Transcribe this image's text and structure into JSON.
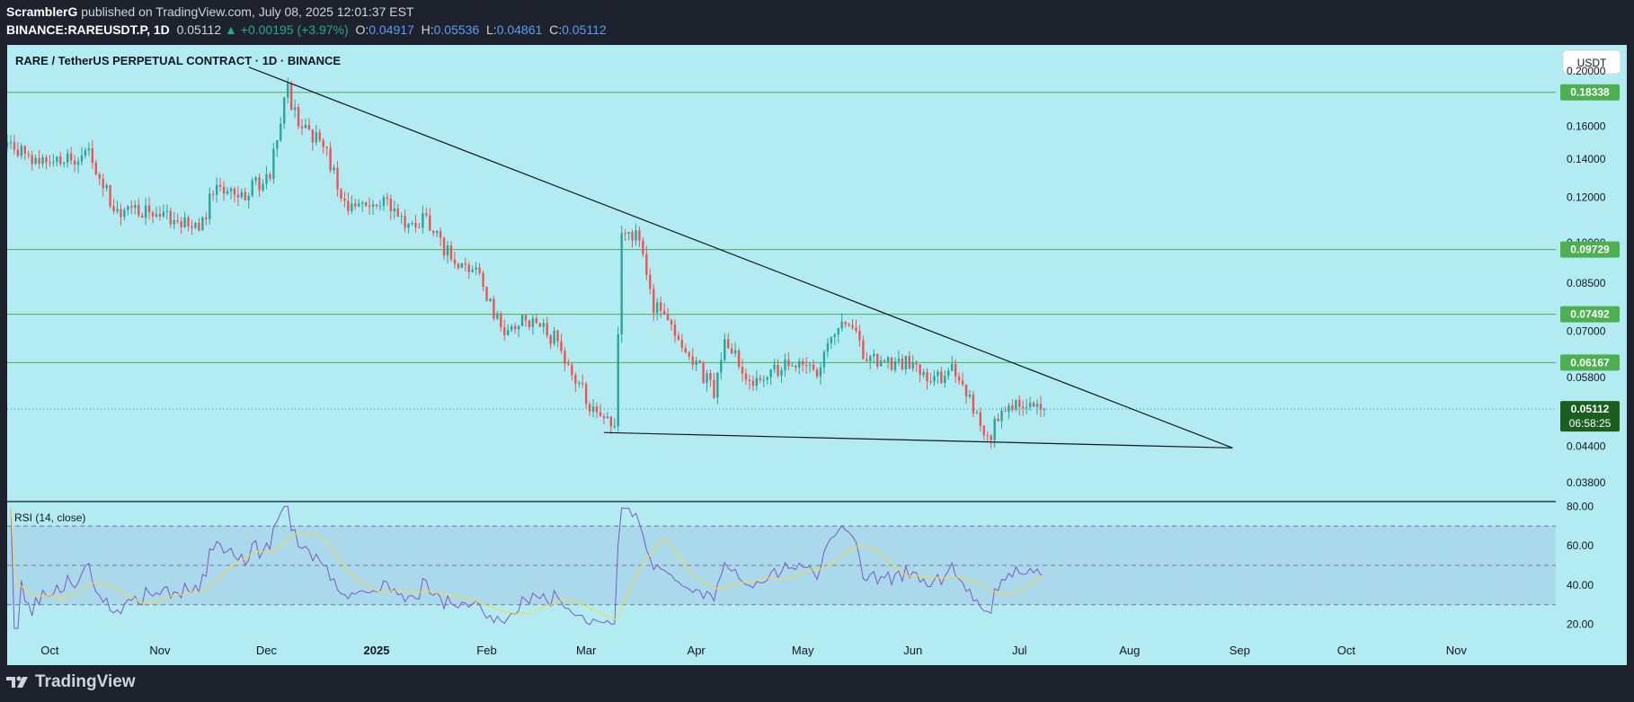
{
  "header": {
    "author": "ScramblerG",
    "published": "published on TradingView.com, July 08, 2025 12:01:37 EST",
    "symbol": "BINANCE:RAREUSDT.P, 1D",
    "last": "0.05112",
    "change": "▲ +0.00195 (+3.97%)",
    "o_label": "O:",
    "o": "0.04917",
    "h_label": "H:",
    "h": "0.05536",
    "l_label": "L:",
    "l": "0.04861",
    "c_label": "C:",
    "c": "0.05112"
  },
  "footer": {
    "brand": "TradingView"
  },
  "chart_data": [
    {
      "type": "candlestick",
      "title": "RARE / TetherUS PERPETUAL CONTRACT · 1D · BINANCE",
      "currency": "USDT",
      "y_scale": "log",
      "ylim": [
        0.0352,
        0.222
      ],
      "y_ticks": [
        "0.20000",
        "0.16000",
        "0.14000",
        "0.12000",
        "0.10000",
        "0.08500",
        "0.07000",
        "0.05800",
        "0.04400",
        "0.03800"
      ],
      "x_ticks": [
        "Oct",
        "Nov",
        "Dec",
        "2025",
        "Feb",
        "Mar",
        "Apr",
        "May",
        "Jun",
        "Jul",
        "Aug",
        "Sep",
        "Oct",
        "Nov"
      ],
      "x_start": "2024-09-19",
      "x_end": "2025-11-29",
      "colors": {
        "up": "#26a69a",
        "down": "#ef5350",
        "background": "#b2ebf2",
        "hline": "#4caf50"
      },
      "horizontal_levels": [
        {
          "value": 0.18338,
          "label": "0.18338"
        },
        {
          "value": 0.09729,
          "label": "0.09729"
        },
        {
          "value": 0.07492,
          "label": "0.07492"
        },
        {
          "value": 0.06167,
          "label": "0.06167"
        }
      ],
      "last_price": {
        "value": 0.05112,
        "label": "0.05112",
        "countdown": "06:58:25"
      },
      "trendlines": [
        {
          "name": "descending-resistance",
          "from": {
            "date": "2024-11-26",
            "price": 0.203
          },
          "to": {
            "date": "2025-08-30",
            "price": 0.0437
          }
        },
        {
          "name": "support",
          "from": {
            "date": "2025-03-06",
            "price": 0.0465
          },
          "to": {
            "date": "2025-08-30",
            "price": 0.0437
          }
        }
      ],
      "anchors": [
        {
          "date": "2024-09-19",
          "price": 0.15
        },
        {
          "date": "2024-09-30",
          "price": 0.136
        },
        {
          "date": "2024-10-12",
          "price": 0.142
        },
        {
          "date": "2024-10-20",
          "price": 0.113
        },
        {
          "date": "2024-11-01",
          "price": 0.114
        },
        {
          "date": "2024-11-12",
          "price": 0.104
        },
        {
          "date": "2024-11-17",
          "price": 0.128
        },
        {
          "date": "2024-11-25",
          "price": 0.121
        },
        {
          "date": "2024-12-02",
          "price": 0.133
        },
        {
          "date": "2024-12-07",
          "price": 0.187
        },
        {
          "date": "2024-12-10",
          "price": 0.158
        },
        {
          "date": "2024-12-17",
          "price": 0.15
        },
        {
          "date": "2024-12-24",
          "price": 0.113
        },
        {
          "date": "2025-01-04",
          "price": 0.117
        },
        {
          "date": "2025-01-10",
          "price": 0.106
        },
        {
          "date": "2025-01-15",
          "price": 0.11
        },
        {
          "date": "2025-01-22",
          "price": 0.094
        },
        {
          "date": "2025-01-30",
          "price": 0.088
        },
        {
          "date": "2025-02-05",
          "price": 0.07
        },
        {
          "date": "2025-02-12",
          "price": 0.074
        },
        {
          "date": "2025-02-20",
          "price": 0.068
        },
        {
          "date": "2025-02-25",
          "price": 0.06
        },
        {
          "date": "2025-03-04",
          "price": 0.049
        },
        {
          "date": "2025-03-09",
          "price": 0.048
        },
        {
          "date": "2025-03-11",
          "price": 0.103
        },
        {
          "date": "2025-03-16",
          "price": 0.104
        },
        {
          "date": "2025-03-20",
          "price": 0.078
        },
        {
          "date": "2025-03-30",
          "price": 0.063
        },
        {
          "date": "2025-04-06",
          "price": 0.055
        },
        {
          "date": "2025-04-09",
          "price": 0.067
        },
        {
          "date": "2025-04-18",
          "price": 0.056
        },
        {
          "date": "2025-04-25",
          "price": 0.061
        },
        {
          "date": "2025-05-05",
          "price": 0.059
        },
        {
          "date": "2025-05-12",
          "price": 0.075
        },
        {
          "date": "2025-05-15",
          "price": 0.073
        },
        {
          "date": "2025-05-19",
          "price": 0.062
        },
        {
          "date": "2025-05-30",
          "price": 0.062
        },
        {
          "date": "2025-06-05",
          "price": 0.057
        },
        {
          "date": "2025-06-13",
          "price": 0.06
        },
        {
          "date": "2025-06-22",
          "price": 0.045
        },
        {
          "date": "2025-06-26",
          "price": 0.052
        },
        {
          "date": "2025-07-08",
          "price": 0.0511
        }
      ]
    },
    {
      "type": "line",
      "title": "RSI (14, close)",
      "ylim": [
        13,
        82
      ],
      "y_ticks": [
        "80.00",
        "60.00",
        "40.00",
        "20.00"
      ],
      "bands": [
        70,
        50,
        30
      ],
      "series": [
        {
          "name": "RSI",
          "color": "#7e57c2"
        },
        {
          "name": "RSI-based MA",
          "color": "#fdd835"
        }
      ]
    }
  ]
}
